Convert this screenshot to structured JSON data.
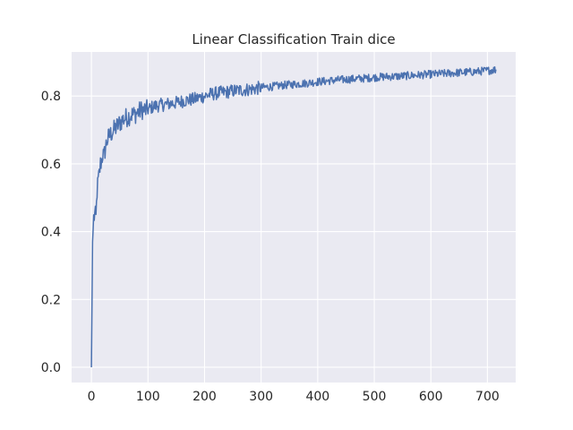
{
  "chart_data": {
    "type": "line",
    "title": "Linear Classification Train dice",
    "xlabel": "",
    "ylabel": "",
    "xlim": [
      -35,
      750
    ],
    "ylim": [
      -0.045,
      0.93
    ],
    "xticks": [
      0,
      100,
      200,
      300,
      400,
      500,
      600,
      700
    ],
    "xtick_labels": [
      "0",
      "100",
      "200",
      "300",
      "400",
      "500",
      "600",
      "700"
    ],
    "yticks": [
      0.0,
      0.2,
      0.4,
      0.6,
      0.8
    ],
    "ytick_labels": [
      "0.0",
      "0.2",
      "0.4",
      "0.6",
      "0.8"
    ],
    "grid": true,
    "legend": "none",
    "background_color": "#eaeaf2",
    "grid_color": "#ffffff",
    "series": [
      {
        "color": "#4c72b0",
        "x": [
          0,
          2,
          4,
          6,
          8,
          10,
          12,
          14,
          16,
          18,
          20,
          22,
          25,
          28,
          31,
          35,
          40,
          45,
          50,
          55,
          60,
          65,
          70,
          75,
          80,
          85,
          90,
          95,
          100,
          110,
          120,
          130,
          140,
          150,
          160,
          170,
          180,
          190,
          200,
          210,
          220,
          230,
          240,
          250,
          260,
          270,
          280,
          290,
          300,
          320,
          340,
          360,
          380,
          400,
          420,
          440,
          460,
          480,
          500,
          520,
          540,
          560,
          580,
          600,
          620,
          640,
          660,
          680,
          700,
          715
        ],
        "y": [
          0.0,
          0.37,
          0.44,
          0.45,
          0.44,
          0.52,
          0.55,
          0.57,
          0.6,
          0.61,
          0.63,
          0.62,
          0.65,
          0.67,
          0.68,
          0.69,
          0.7,
          0.71,
          0.72,
          0.73,
          0.735,
          0.74,
          0.745,
          0.745,
          0.75,
          0.755,
          0.76,
          0.758,
          0.76,
          0.77,
          0.773,
          0.775,
          0.778,
          0.78,
          0.785,
          0.788,
          0.79,
          0.795,
          0.8,
          0.805,
          0.808,
          0.81,
          0.812,
          0.815,
          0.817,
          0.818,
          0.82,
          0.822,
          0.825,
          0.828,
          0.832,
          0.835,
          0.838,
          0.842,
          0.845,
          0.848,
          0.85,
          0.852,
          0.855,
          0.857,
          0.858,
          0.86,
          0.862,
          0.864,
          0.866,
          0.868,
          0.87,
          0.872,
          0.875,
          0.878
        ]
      }
    ]
  }
}
